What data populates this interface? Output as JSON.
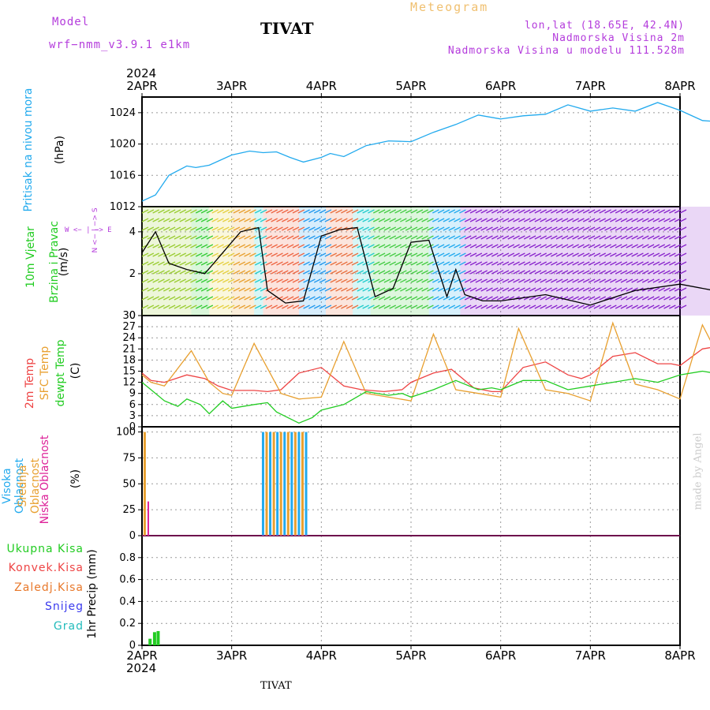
{
  "header": {
    "model_label": "Model",
    "model_name": "wrf−nmm_v3.9.1  e1km",
    "title": "TIVAT",
    "meteogram": "Meteogram",
    "lonlat": "lon,lat (18.65E, 42.4N)",
    "altitude": "Nadmorska Visina 2m",
    "model_altitude": "Nadmorska Visina u modelu 111.528m"
  },
  "footer": {
    "station": "TIVAT",
    "year": "2024",
    "credit": "made by Angel"
  },
  "colors": {
    "pressure": "#22aaee",
    "temp2m": "#ee4444",
    "sfc": "#e8a030",
    "dewpt": "#22cc22",
    "high_cloud": "#22aaee",
    "mid_cloud": "#e8a030",
    "low_cloud": "#dd2299",
    "precip": "#22cc22",
    "wind": "#b43cdc"
  },
  "panels": {
    "pressure": {
      "label": "Pritisak na nivou mora",
      "unit": "(hPa)"
    },
    "wind": {
      "label1": "10m Vjetar",
      "label2": "Brzina i Pravac",
      "unit": "(m/s)",
      "compass_ns": "N <− | −> S",
      "compass_we": "W <− | −> E"
    },
    "temp": {
      "label1": "2m Temp",
      "label2": "SFC Temp",
      "label3": "dewpt Temp",
      "unit": "(C)"
    },
    "cloud": {
      "label1": "Visoka Oblacnost",
      "label2": "Srednja Oblacnost",
      "label3": "Niska Oblacnost",
      "unit": "(%)"
    },
    "precip": {
      "legend": [
        "Ukupna Kisa",
        "Konvek.Kisa",
        "Zaledj.Kisa",
        "Snijeg",
        "Grad"
      ],
      "unit": "1hr Precip (mm)"
    }
  },
  "chart_data": [
    {
      "type": "line",
      "title": "Pritisak na nivou mora",
      "x_label": "date",
      "ylabel": "(hPa)",
      "xlim": [
        "2024-04-02",
        "2024-04-08"
      ],
      "xticks": [
        "2APR",
        "3APR",
        "4APR",
        "5APR",
        "6APR",
        "7APR",
        "8APR"
      ],
      "ylim": [
        1012,
        1026
      ],
      "yticks": [
        1012,
        1016,
        1020,
        1024
      ],
      "grid": true,
      "series": [
        {
          "name": "Pritisak na nivou mora",
          "x_days": [
            0,
            0.15,
            0.3,
            0.5,
            0.6,
            0.75,
            1.0,
            1.2,
            1.35,
            1.5,
            1.65,
            1.8,
            2.0,
            2.1,
            2.25,
            2.5,
            2.75,
            3.0,
            3.25,
            3.5,
            3.75,
            4.0,
            4.25,
            4.5,
            4.75,
            5.0,
            5.25,
            5.5,
            5.75,
            6.0,
            6.25,
            6.5,
            6.75,
            7.0
          ],
          "values": [
            1012.7,
            1013.5,
            1016,
            1017.2,
            1017,
            1017.3,
            1018.6,
            1019.1,
            1018.9,
            1019,
            1018.3,
            1017.7,
            1018.3,
            1018.8,
            1018.4,
            1019.8,
            1020.4,
            1020.3,
            1021.5,
            1022.5,
            1023.7,
            1023.2,
            1023.6,
            1023.8,
            1025,
            1024.2,
            1024.6,
            1024.2,
            1025.3,
            1024.3,
            1023,
            1022.8,
            1022.2,
            1021.8
          ]
        }
      ]
    },
    {
      "type": "line",
      "title": "10m Vjetar Brzina i Pravac",
      "x_label": "date",
      "ylabel": "(m/s)",
      "ylim": [
        0,
        5.2
      ],
      "yticks": [
        0,
        2,
        4
      ],
      "grid": true,
      "series": [
        {
          "name": "Brzina",
          "x_days": [
            0,
            0.15,
            0.3,
            0.5,
            0.7,
            0.9,
            1.1,
            1.3,
            1.4,
            1.6,
            1.8,
            2.0,
            2.2,
            2.4,
            2.6,
            2.8,
            3.0,
            3.2,
            3.4,
            3.5,
            3.6,
            3.8,
            4.0,
            4.5,
            5.0,
            5.5,
            6.0,
            6.5,
            7.0
          ],
          "values": [
            3.0,
            4.0,
            2.5,
            2.2,
            2.0,
            3.0,
            4.0,
            4.2,
            1.2,
            0.6,
            0.7,
            3.8,
            4.1,
            4.2,
            0.9,
            1.3,
            3.5,
            3.6,
            0.9,
            2.2,
            1.0,
            0.7,
            0.7,
            1.0,
            0.5,
            1.2,
            1.5,
            1.1,
            1.4
          ]
        }
      ]
    },
    {
      "type": "line",
      "title": "2m Temp / SFC Temp / dewpt Temp",
      "x_label": "date",
      "ylabel": "(C)",
      "ylim": [
        0,
        30
      ],
      "yticks": [
        0,
        3,
        6,
        9,
        12,
        15,
        18,
        21,
        24,
        27,
        30
      ],
      "grid": true,
      "series": [
        {
          "name": "2m Temp",
          "x_days": [
            0,
            0.1,
            0.25,
            0.5,
            0.7,
            0.85,
            1.0,
            1.25,
            1.4,
            1.55,
            1.75,
            2.0,
            2.25,
            2.45,
            2.7,
            2.9,
            3.0,
            3.25,
            3.45,
            3.7,
            3.9,
            4.0,
            4.25,
            4.5,
            4.75,
            4.9,
            5.0,
            5.25,
            5.5,
            5.75,
            5.9,
            6.0,
            6.25,
            6.5,
            6.75,
            7.0
          ],
          "values": [
            14.5,
            12.5,
            12,
            14,
            13,
            11,
            9.8,
            9.8,
            9.5,
            10,
            14.5,
            16,
            11,
            10,
            9.5,
            10,
            12,
            14.5,
            15.5,
            10.5,
            9.5,
            9.5,
            16,
            17.5,
            14,
            13,
            14,
            19,
            20,
            17,
            17,
            16.5,
            21,
            22,
            18.5,
            17.5
          ]
        },
        {
          "name": "SFC Temp",
          "x_days": [
            0,
            0.1,
            0.25,
            0.55,
            0.75,
            0.9,
            1.0,
            1.25,
            1.55,
            1.75,
            2.0,
            2.25,
            2.5,
            2.75,
            3.0,
            3.25,
            3.5,
            3.75,
            4.0,
            4.2,
            4.5,
            4.75,
            5.0,
            5.25,
            5.5,
            5.75,
            6.0,
            6.25,
            6.45,
            6.75,
            7.0
          ],
          "values": [
            14,
            12,
            11,
            20.5,
            12,
            9,
            8.5,
            22.5,
            9,
            7.5,
            8,
            23,
            9,
            8,
            7,
            25,
            10,
            9,
            8,
            26.5,
            10,
            9,
            7,
            28,
            11.5,
            10,
            7.5,
            27.5,
            18,
            14,
            12
          ]
        },
        {
          "name": "dewpt Temp",
          "x_days": [
            0,
            0.1,
            0.25,
            0.4,
            0.5,
            0.65,
            0.75,
            0.9,
            1.0,
            1.25,
            1.4,
            1.5,
            1.75,
            1.9,
            2.0,
            2.25,
            2.5,
            2.75,
            2.9,
            3.0,
            3.25,
            3.5,
            3.75,
            3.9,
            4.0,
            4.25,
            4.5,
            4.75,
            5.0,
            5.25,
            5.5,
            5.75,
            6.0,
            6.25,
            6.5,
            6.75,
            7.0
          ],
          "values": [
            12,
            10,
            7,
            5.5,
            7.5,
            6,
            3.5,
            7,
            5,
            6,
            6.5,
            4,
            1,
            2.5,
            4.5,
            6,
            9.5,
            8.5,
            9,
            8,
            10,
            12.5,
            10,
            10.5,
            10,
            12.5,
            12.5,
            10,
            11,
            12,
            13,
            12,
            14,
            15,
            14,
            12,
            10.5
          ]
        }
      ]
    },
    {
      "type": "bar",
      "title": "Visoka / Srednja / Niska Oblacnost",
      "x_label": "date",
      "ylabel": "(%)",
      "ylim": [
        0,
        100
      ],
      "yticks": [
        0,
        25,
        50,
        75,
        100
      ],
      "grid": true,
      "series": [
        {
          "name": "Visoka Oblacnost",
          "x_days": [
            1.35,
            1.43,
            1.51,
            1.59,
            1.67,
            1.75,
            1.83
          ],
          "values": [
            100,
            100,
            100,
            100,
            100,
            100,
            100
          ]
        },
        {
          "name": "Srednja Oblacnost",
          "x_days": [
            0.03,
            1.39,
            1.47,
            1.55,
            1.63,
            1.71,
            1.79
          ],
          "values": [
            100,
            100,
            100,
            100,
            100,
            100,
            100
          ]
        },
        {
          "name": "Niska Oblacnost",
          "x_days": [
            0.07
          ],
          "values": [
            33
          ]
        }
      ]
    },
    {
      "type": "bar",
      "title": "1hr Precip",
      "x_label": "date",
      "ylabel": "1hr Precip (mm)",
      "ylim": [
        0,
        1.0
      ],
      "yticks": [
        0,
        0.2,
        0.4,
        0.6,
        0.8
      ],
      "grid": true,
      "series": [
        {
          "name": "Ukupna Kisa",
          "x_days": [
            0.09,
            0.14,
            0.18
          ],
          "values": [
            0.06,
            0.12,
            0.13
          ]
        }
      ]
    }
  ]
}
